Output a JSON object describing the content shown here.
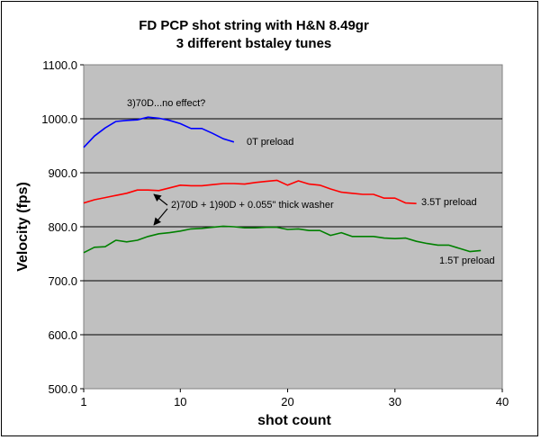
{
  "chart_data": {
    "type": "line",
    "title": [
      "FD PCP shot string with H&N 8.49gr",
      "3 different bstaley tunes"
    ],
    "xlabel": "shot count",
    "ylabel": "Velocity (fps)",
    "xlim": [
      1,
      40
    ],
    "ylim": [
      500,
      1100
    ],
    "x_ticks": [
      1,
      10,
      20,
      30,
      40
    ],
    "y_ticks": [
      "500.0",
      "600.0",
      "700.0",
      "800.0",
      "900.0",
      "1000.0",
      "1100.0"
    ],
    "grid": "horizontal",
    "background": "#c0c0c0",
    "series": [
      {
        "name": "0T preload",
        "color": "#0000ff",
        "x": [
          1,
          2,
          3,
          4,
          5,
          6,
          7,
          8,
          9,
          10,
          11,
          12,
          13,
          14,
          15
        ],
        "values": [
          947,
          968,
          983,
          995,
          997,
          998,
          1003,
          1001,
          997,
          991,
          982,
          982,
          973,
          963,
          957
        ]
      },
      {
        "name": "3.5T preload",
        "color": "#ff0000",
        "x": [
          1,
          2,
          3,
          4,
          5,
          6,
          7,
          8,
          9,
          10,
          11,
          12,
          13,
          14,
          15,
          16,
          17,
          18,
          19,
          20,
          21,
          22,
          23,
          24,
          25,
          26,
          27,
          28,
          29,
          30,
          31,
          32
        ],
        "values": [
          844,
          850,
          854,
          858,
          862,
          868,
          868,
          867,
          872,
          877,
          876,
          876,
          878,
          880,
          880,
          879,
          882,
          884,
          886,
          877,
          885,
          879,
          877,
          870,
          864,
          862,
          860,
          860,
          853,
          853,
          844,
          843
        ]
      },
      {
        "name": "1.5T preload",
        "color": "#008000",
        "x": [
          1,
          2,
          3,
          4,
          5,
          6,
          7,
          8,
          9,
          10,
          11,
          12,
          13,
          14,
          15,
          16,
          17,
          18,
          19,
          20,
          21,
          22,
          23,
          24,
          25,
          26,
          27,
          28,
          29,
          30,
          31,
          32,
          33,
          34,
          35,
          36,
          37,
          38
        ],
        "values": [
          752,
          762,
          763,
          775,
          772,
          775,
          782,
          787,
          789,
          792,
          796,
          797,
          799,
          801,
          800,
          798,
          798,
          799,
          799,
          795,
          796,
          793,
          793,
          784,
          789,
          782,
          782,
          782,
          779,
          778,
          779,
          773,
          769,
          766,
          766,
          760,
          754,
          756
        ]
      }
    ],
    "annotations": [
      {
        "text": "3)70D...no effect?"
      },
      {
        "text": "2)70D + 1)90D + 0.055\" thick washer"
      }
    ]
  }
}
